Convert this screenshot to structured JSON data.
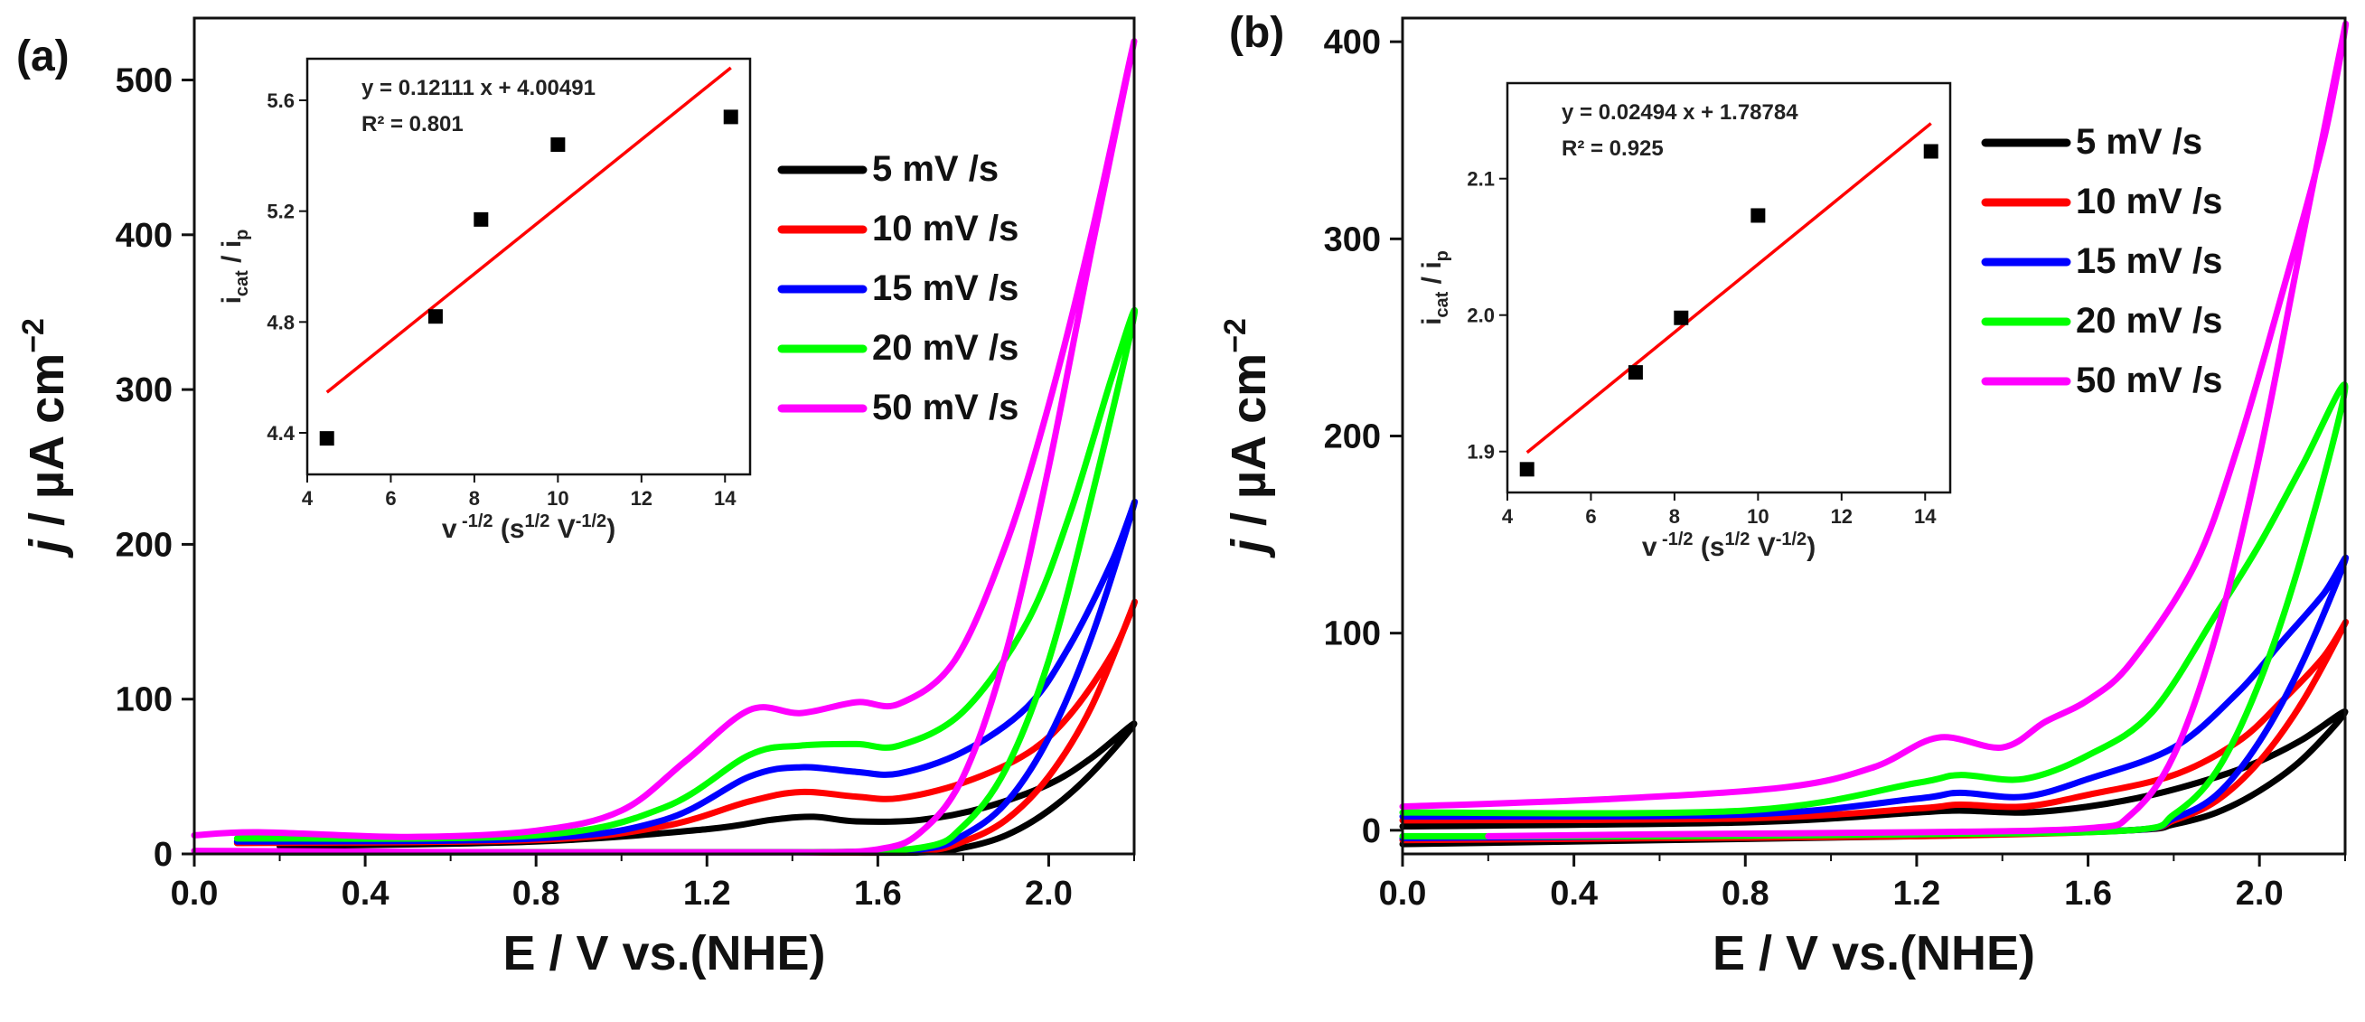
{
  "chart_data": [
    {
      "type": "line",
      "panel_label": "(a)",
      "xlabel": "E / V vs.(NHE)",
      "ylabel": {
        "italic": "j",
        "main": " / µA cm",
        "sup": "−2"
      },
      "xlim": [
        0,
        2.2
      ],
      "ylim": [
        0,
        540
      ],
      "xticks": [
        "0.0",
        "0.4",
        "0.8",
        "1.2",
        "1.6",
        "2.0"
      ],
      "xtick_values": [
        0,
        0.4,
        0.8,
        1.2,
        1.6,
        2.0
      ],
      "yticks": [
        "0",
        "100",
        "200",
        "300",
        "400",
        "500"
      ],
      "ytick_values": [
        0,
        100,
        200,
        300,
        400,
        500
      ],
      "legend_position": "right",
      "series": [
        {
          "name": "5 mV /s",
          "color": "#000000",
          "forward": [
            [
              0.2,
              5
            ],
            [
              0.8,
              8
            ],
            [
              1.2,
              16
            ],
            [
              1.35,
              22
            ],
            [
              1.45,
              24
            ],
            [
              1.55,
              21
            ],
            [
              1.7,
              22
            ],
            [
              1.85,
              30
            ],
            [
              2.0,
              45
            ],
            [
              2.1,
              62
            ],
            [
              2.2,
              84
            ]
          ],
          "reverse": [
            [
              2.2,
              84
            ],
            [
              2.1,
              52
            ],
            [
              2.0,
              28
            ],
            [
              1.9,
              12
            ],
            [
              1.8,
              4
            ],
            [
              1.7,
              1
            ],
            [
              1.4,
              1
            ],
            [
              1.0,
              1
            ],
            [
              0.5,
              1
            ],
            [
              0.2,
              1
            ]
          ]
        },
        {
          "name": "10 mV /s",
          "color": "#ff0000",
          "forward": [
            [
              0.1,
              7
            ],
            [
              0.8,
              9
            ],
            [
              1.1,
              18
            ],
            [
              1.3,
              34
            ],
            [
              1.42,
              40
            ],
            [
              1.55,
              37
            ],
            [
              1.65,
              36
            ],
            [
              1.8,
              46
            ],
            [
              1.95,
              65
            ],
            [
              2.05,
              90
            ],
            [
              2.15,
              130
            ],
            [
              2.2,
              162
            ]
          ],
          "reverse": [
            [
              2.2,
              162
            ],
            [
              2.1,
              95
            ],
            [
              2.0,
              50
            ],
            [
              1.9,
              22
            ],
            [
              1.8,
              8
            ],
            [
              1.7,
              2
            ],
            [
              1.4,
              1
            ],
            [
              0.8,
              1
            ],
            [
              0.2,
              1
            ]
          ]
        },
        {
          "name": "15 mV /s",
          "color": "#0000ff",
          "forward": [
            [
              0.1,
              8
            ],
            [
              0.8,
              10
            ],
            [
              1.1,
              22
            ],
            [
              1.3,
              50
            ],
            [
              1.42,
              56
            ],
            [
              1.55,
              53
            ],
            [
              1.65,
              52
            ],
            [
              1.8,
              66
            ],
            [
              1.95,
              95
            ],
            [
              2.05,
              135
            ],
            [
              2.15,
              190
            ],
            [
              2.2,
              226
            ]
          ],
          "reverse": [
            [
              2.2,
              226
            ],
            [
              2.1,
              140
            ],
            [
              2.0,
              75
            ],
            [
              1.9,
              33
            ],
            [
              1.8,
              12
            ],
            [
              1.7,
              3
            ],
            [
              1.4,
              1
            ],
            [
              0.8,
              1
            ],
            [
              0.2,
              1
            ]
          ]
        },
        {
          "name": "20 mV /s",
          "color": "#00ff00",
          "forward": [
            [
              0.1,
              10
            ],
            [
              0.8,
              12
            ],
            [
              1.1,
              30
            ],
            [
              1.3,
              64
            ],
            [
              1.42,
              70
            ],
            [
              1.55,
              71
            ],
            [
              1.65,
              70
            ],
            [
              1.8,
              92
            ],
            [
              1.95,
              150
            ],
            [
              2.05,
              220
            ],
            [
              2.15,
              310
            ],
            [
              2.2,
              348
            ]
          ],
          "reverse": [
            [
              2.2,
              348
            ],
            [
              2.1,
              230
            ],
            [
              2.0,
              125
            ],
            [
              1.9,
              55
            ],
            [
              1.8,
              18
            ],
            [
              1.7,
              4
            ],
            [
              1.4,
              1
            ],
            [
              0.8,
              1
            ],
            [
              0.2,
              1
            ]
          ]
        },
        {
          "name": "50 mV /s",
          "color": "#ff00ff",
          "forward": [
            [
              0.0,
              12
            ],
            [
              0.15,
              14
            ],
            [
              0.5,
              11
            ],
            [
              0.8,
              15
            ],
            [
              1.0,
              28
            ],
            [
              1.15,
              60
            ],
            [
              1.3,
              93
            ],
            [
              1.42,
              91
            ],
            [
              1.55,
              98
            ],
            [
              1.65,
              97
            ],
            [
              1.78,
              125
            ],
            [
              1.9,
              200
            ],
            [
              2.0,
              290
            ],
            [
              2.1,
              400
            ],
            [
              2.2,
              525
            ]
          ],
          "reverse": [
            [
              2.2,
              525
            ],
            [
              2.1,
              390
            ],
            [
              2.0,
              250
            ],
            [
              1.9,
              130
            ],
            [
              1.8,
              50
            ],
            [
              1.7,
              14
            ],
            [
              1.6,
              3
            ],
            [
              1.4,
              1
            ],
            [
              0.8,
              1
            ],
            [
              0.0,
              2
            ]
          ]
        }
      ],
      "inset": {
        "type": "scatter",
        "xlabel": {
          "main": "v",
          "sup1": " -1/2",
          "rest": " (s",
          "sup2": "1/2",
          "mid": " V",
          "sup3": "-1/2",
          "end": ")"
        },
        "ylabel": {
          "i1": "i",
          "sub1": "cat",
          "mid": " / i",
          "sub2": "p"
        },
        "xlim": [
          4,
          14.6
        ],
        "ylim": [
          4.25,
          5.75
        ],
        "xticks": [
          "4",
          "6",
          "8",
          "10",
          "12",
          "14"
        ],
        "xtick_values": [
          4,
          6,
          8,
          10,
          12,
          14
        ],
        "yticks": [
          "4.4",
          "4.8",
          "5.2",
          "5.6"
        ],
        "ytick_values": [
          4.4,
          4.8,
          5.2,
          5.6
        ],
        "points": [
          [
            4.47,
            4.38
          ],
          [
            7.07,
            4.82
          ],
          [
            8.16,
            5.17
          ],
          [
            10.0,
            5.44
          ],
          [
            14.14,
            5.54
          ]
        ],
        "fit": {
          "slope": 0.12111,
          "intercept": 4.00491,
          "x_range": [
            4.47,
            14.14
          ]
        },
        "equation": "y = 0.12111 x + 4.00491",
        "r2": "R² = 0.801"
      }
    },
    {
      "type": "line",
      "panel_label": "(b)",
      "xlabel": "E / V vs.(NHE)",
      "ylabel": {
        "italic": "j",
        "main": " / µA cm",
        "sup": "−2"
      },
      "xlim": [
        0,
        2.2
      ],
      "ylim": [
        -12,
        412
      ],
      "xticks": [
        "0.0",
        "0.4",
        "0.8",
        "1.2",
        "1.6",
        "2.0"
      ],
      "xtick_values": [
        0,
        0.4,
        0.8,
        1.2,
        1.6,
        2.0
      ],
      "yticks": [
        "0",
        "100",
        "200",
        "300",
        "400"
      ],
      "ytick_values": [
        0,
        100,
        200,
        300,
        400
      ],
      "legend_position": "right",
      "series": [
        {
          "name": "5 mV /s",
          "color": "#000000",
          "forward": [
            [
              0.0,
              2
            ],
            [
              0.8,
              4
            ],
            [
              1.2,
              9
            ],
            [
              1.3,
              10
            ],
            [
              1.45,
              9
            ],
            [
              1.6,
              12
            ],
            [
              1.75,
              18
            ],
            [
              1.9,
              27
            ],
            [
              2.0,
              35
            ],
            [
              2.1,
              46
            ],
            [
              2.2,
              60
            ]
          ],
          "reverse": [
            [
              2.2,
              60
            ],
            [
              2.1,
              36
            ],
            [
              2.0,
              20
            ],
            [
              1.9,
              9
            ],
            [
              1.8,
              3
            ],
            [
              1.7,
              0
            ],
            [
              1.2,
              -3
            ],
            [
              0.6,
              -5
            ],
            [
              0.0,
              -7
            ]
          ]
        },
        {
          "name": "10 mV /s",
          "color": "#ff0000",
          "forward": [
            [
              0.0,
              5
            ],
            [
              0.8,
              6
            ],
            [
              1.2,
              11
            ],
            [
              1.3,
              13
            ],
            [
              1.45,
              12
            ],
            [
              1.6,
              18
            ],
            [
              1.8,
              28
            ],
            [
              1.95,
              45
            ],
            [
              2.05,
              65
            ],
            [
              2.15,
              88
            ],
            [
              2.2,
              105
            ]
          ],
          "reverse": [
            [
              2.2,
              105
            ],
            [
              2.1,
              65
            ],
            [
              2.0,
              35
            ],
            [
              1.9,
              15
            ],
            [
              1.8,
              5
            ],
            [
              1.7,
              0
            ],
            [
              1.2,
              -3
            ],
            [
              0.6,
              -4
            ],
            [
              0.0,
              -5
            ]
          ]
        },
        {
          "name": "15 mV /s",
          "color": "#0000ff",
          "forward": [
            [
              0.0,
              7
            ],
            [
              0.8,
              8
            ],
            [
              1.2,
              16
            ],
            [
              1.3,
              19
            ],
            [
              1.45,
              17
            ],
            [
              1.6,
              26
            ],
            [
              1.8,
              42
            ],
            [
              1.95,
              70
            ],
            [
              2.05,
              95
            ],
            [
              2.15,
              120
            ],
            [
              2.2,
              137
            ]
          ],
          "reverse": [
            [
              2.2,
              137
            ],
            [
              2.1,
              85
            ],
            [
              2.0,
              45
            ],
            [
              1.9,
              18
            ],
            [
              1.8,
              6
            ],
            [
              1.7,
              0
            ],
            [
              1.2,
              -2
            ],
            [
              0.6,
              -3
            ],
            [
              0.0,
              -4
            ]
          ]
        },
        {
          "name": "20 mV /s",
          "color": "#00ff00",
          "forward": [
            [
              0.0,
              9
            ],
            [
              0.8,
              10
            ],
            [
              1.2,
              24
            ],
            [
              1.3,
              28
            ],
            [
              1.45,
              26
            ],
            [
              1.6,
              38
            ],
            [
              1.75,
              60
            ],
            [
              1.9,
              110
            ],
            [
              2.0,
              145
            ],
            [
              2.1,
              185
            ],
            [
              2.2,
              225
            ]
          ],
          "reverse": [
            [
              2.2,
              225
            ],
            [
              2.1,
              140
            ],
            [
              2.0,
              75
            ],
            [
              1.9,
              30
            ],
            [
              1.8,
              8
            ],
            [
              1.7,
              0
            ],
            [
              1.2,
              -2
            ],
            [
              0.6,
              -3
            ],
            [
              0.0,
              -3
            ]
          ]
        },
        {
          "name": "50 mV /s",
          "color": "#ff00ff",
          "forward": [
            [
              0.0,
              12
            ],
            [
              0.5,
              16
            ],
            [
              0.9,
              22
            ],
            [
              1.1,
              32
            ],
            [
              1.25,
              47
            ],
            [
              1.4,
              42
            ],
            [
              1.5,
              55
            ],
            [
              1.6,
              66
            ],
            [
              1.7,
              85
            ],
            [
              1.85,
              135
            ],
            [
              1.95,
              195
            ],
            [
              2.05,
              270
            ],
            [
              2.15,
              350
            ],
            [
              2.2,
              408
            ]
          ],
          "reverse": [
            [
              2.2,
              408
            ],
            [
              2.1,
              300
            ],
            [
              2.0,
              190
            ],
            [
              1.9,
              100
            ],
            [
              1.8,
              38
            ],
            [
              1.7,
              8
            ],
            [
              1.6,
              1
            ],
            [
              1.2,
              -1
            ],
            [
              0.6,
              -2
            ],
            [
              0.2,
              -3
            ]
          ]
        }
      ],
      "inset": {
        "type": "scatter",
        "xlabel": {
          "main": "v",
          "sup1": " -1/2",
          "rest": " (s",
          "sup2": "1/2",
          "mid": " V",
          "sup3": "-1/2",
          "end": ")"
        },
        "ylabel": {
          "i1": "i",
          "sub1": "cat",
          "mid": " / i",
          "sub2": "p"
        },
        "xlim": [
          4,
          14.6
        ],
        "ylim": [
          1.87,
          2.17
        ],
        "xticks": [
          "4",
          "6",
          "8",
          "10",
          "12",
          "14"
        ],
        "xtick_values": [
          4,
          6,
          8,
          10,
          12,
          14
        ],
        "yticks": [
          "1.9",
          "2.0",
          "2.1"
        ],
        "ytick_values": [
          1.9,
          2.0,
          2.1
        ],
        "points": [
          [
            4.47,
            1.887
          ],
          [
            7.07,
            1.958
          ],
          [
            8.16,
            1.998
          ],
          [
            10.0,
            2.073
          ],
          [
            14.14,
            2.12
          ]
        ],
        "fit": {
          "slope": 0.02494,
          "intercept": 1.78784,
          "x_range": [
            4.47,
            14.14
          ]
        },
        "equation": "y = 0.02494 x + 1.78784",
        "r2": "R² = 0.925"
      }
    }
  ]
}
